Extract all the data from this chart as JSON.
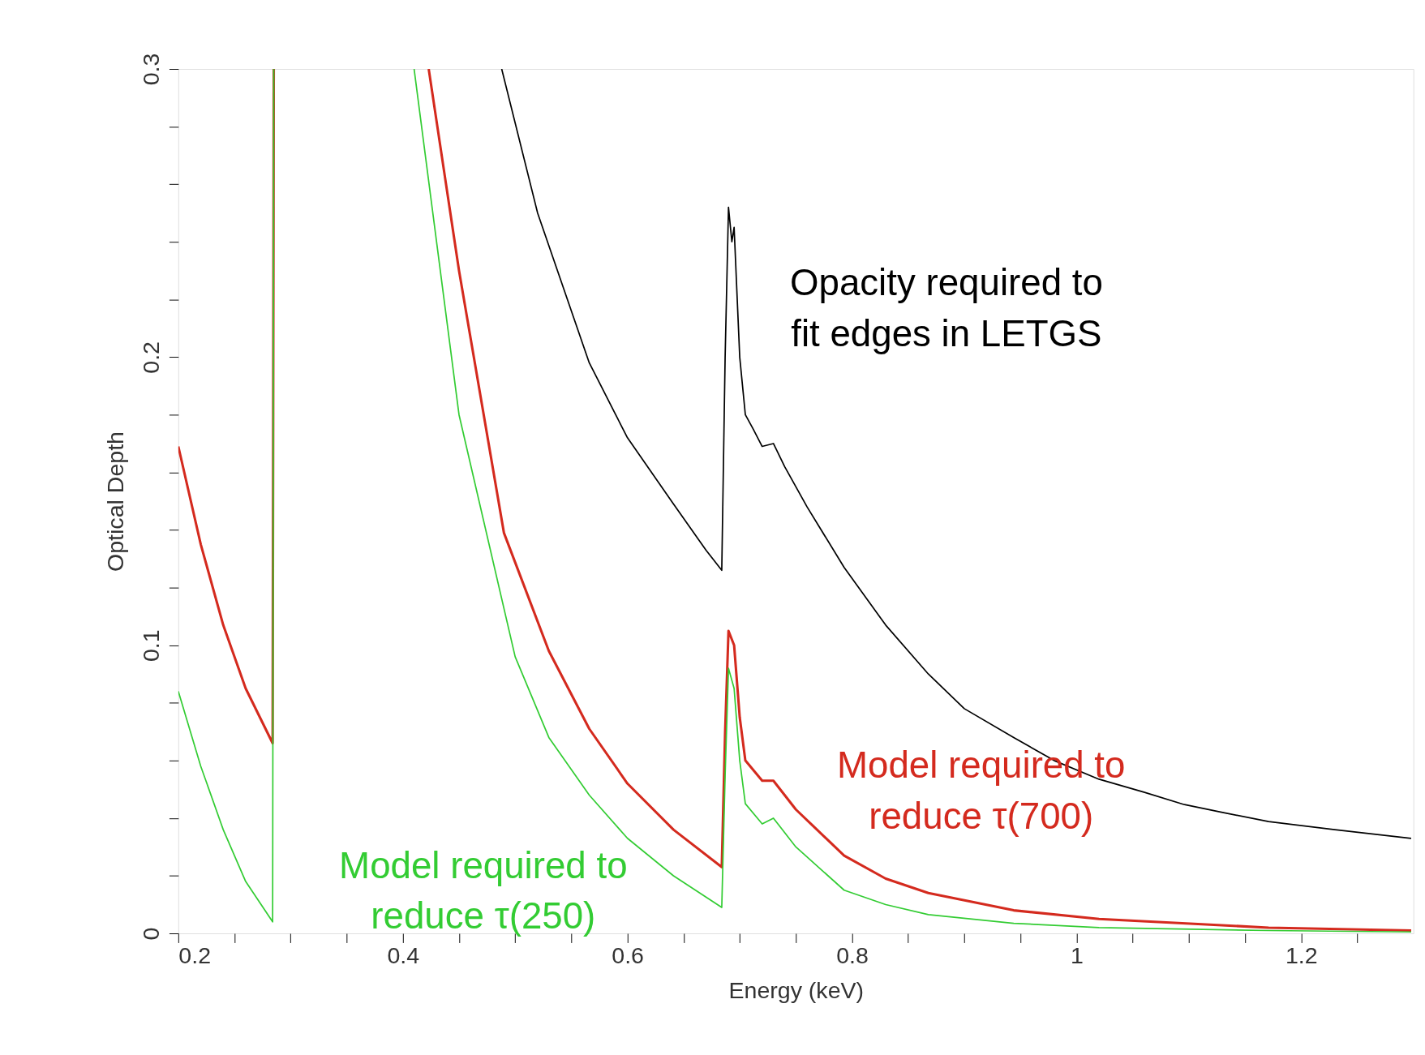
{
  "chart_data": {
    "type": "line",
    "xlabel": "Energy (keV)",
    "ylabel": "Optical Depth",
    "xlim": [
      0.2,
      1.3
    ],
    "ylim": [
      0,
      0.3
    ],
    "xticks": [
      0.2,
      {
        "value": 0.25,
        "label": null
      },
      {
        "value": 0.3,
        "label": null
      },
      {
        "value": 0.35,
        "label": null
      },
      0.4,
      {
        "value": 0.45,
        "label": null
      },
      {
        "value": 0.5,
        "label": null
      },
      {
        "value": 0.55,
        "label": null
      },
      0.6,
      {
        "value": 0.65,
        "label": null
      },
      {
        "value": 0.7,
        "label": null
      },
      {
        "value": 0.75,
        "label": null
      },
      0.8,
      {
        "value": 0.85,
        "label": null
      },
      {
        "value": 0.9,
        "label": null
      },
      {
        "value": 0.95,
        "label": null
      },
      1,
      {
        "value": 1.05,
        "label": null
      },
      {
        "value": 1.1,
        "label": null
      },
      {
        "value": 1.15,
        "label": null
      },
      1.2,
      {
        "value": 1.25,
        "label": null
      }
    ],
    "yticks": [
      0,
      {
        "value": 0.02,
        "label": null
      },
      {
        "value": 0.04,
        "label": null
      },
      {
        "value": 0.06,
        "label": null
      },
      {
        "value": 0.08,
        "label": null
      },
      0.1,
      {
        "value": 0.12,
        "label": null
      },
      {
        "value": 0.14,
        "label": null
      },
      {
        "value": 0.16,
        "label": null
      },
      {
        "value": 0.18,
        "label": null
      },
      0.2,
      {
        "value": 0.22,
        "label": null
      },
      {
        "value": 0.24,
        "label": null
      },
      {
        "value": 0.26,
        "label": null
      },
      {
        "value": 0.28,
        "label": null
      },
      0.3
    ],
    "grid": false,
    "marker": "none",
    "line_style": "solid",
    "series": [
      {
        "color": "#000000",
        "x": [
          0.488,
          0.52,
          0.566,
          0.6,
          0.641,
          0.67,
          0.684,
          0.687,
          0.69,
          0.693,
          0.695,
          0.7,
          0.705,
          0.712,
          0.72,
          0.73,
          0.74,
          0.76,
          0.793,
          0.83,
          0.868,
          0.9,
          0.944,
          0.98,
          1.02,
          1.06,
          1.096,
          1.13,
          1.171,
          1.23,
          1.298
        ],
        "values": [
          0.3,
          0.25,
          0.198,
          0.172,
          0.149,
          0.133,
          0.126,
          0.2,
          0.252,
          0.24,
          0.245,
          0.2,
          0.18,
          0.175,
          0.169,
          0.17,
          0.162,
          0.148,
          0.127,
          0.107,
          0.09,
          0.078,
          0.068,
          0.06,
          0.0535,
          0.049,
          0.0447,
          0.042,
          0.0388,
          0.036,
          0.033
        ]
      },
      {
        "color": "#d42a1e",
        "x": [
          0.2,
          0.22,
          0.24,
          0.26,
          0.284,
          0.285,
          0.3,
          0.423,
          0.45,
          0.49,
          0.53,
          0.566,
          0.6,
          0.641,
          0.684,
          0.687,
          0.69,
          0.695,
          0.7,
          0.705,
          0.72,
          0.73,
          0.75,
          0.793,
          0.83,
          0.868,
          0.944,
          1.02,
          1.171,
          1.298
        ],
        "values": [
          0.169,
          0.135,
          0.107,
          0.085,
          0.066,
          0.3,
          null,
          0.3,
          0.23,
          0.139,
          0.098,
          0.071,
          0.052,
          0.036,
          0.023,
          0.07,
          0.105,
          0.1,
          0.075,
          0.06,
          0.053,
          0.053,
          0.043,
          0.027,
          0.019,
          0.014,
          0.008,
          0.005,
          0.002,
          0.001
        ]
      },
      {
        "color": "#33cc33",
        "x": [
          0.2,
          0.22,
          0.24,
          0.26,
          0.284,
          0.285,
          0.3,
          0.41,
          0.45,
          0.5,
          0.53,
          0.566,
          0.6,
          0.641,
          0.684,
          0.687,
          0.69,
          0.695,
          0.7,
          0.705,
          0.72,
          0.73,
          0.75,
          0.793,
          0.83,
          0.868,
          0.944,
          1.02,
          1.171,
          1.298
        ],
        "values": [
          0.084,
          0.058,
          0.036,
          0.018,
          0.004,
          0.3,
          null,
          0.3,
          0.18,
          0.096,
          0.068,
          0.048,
          0.033,
          0.02,
          0.009,
          0.055,
          0.092,
          0.085,
          0.06,
          0.045,
          0.038,
          0.04,
          0.03,
          0.015,
          0.01,
          0.0065,
          0.0035,
          0.002,
          0.001,
          0.0005
        ]
      }
    ],
    "annotations": [
      "Opacity required to\nfit edges in LETGS",
      "Model required to\nreduce τ(700)",
      "Model required to\nreduce τ(250)"
    ]
  }
}
